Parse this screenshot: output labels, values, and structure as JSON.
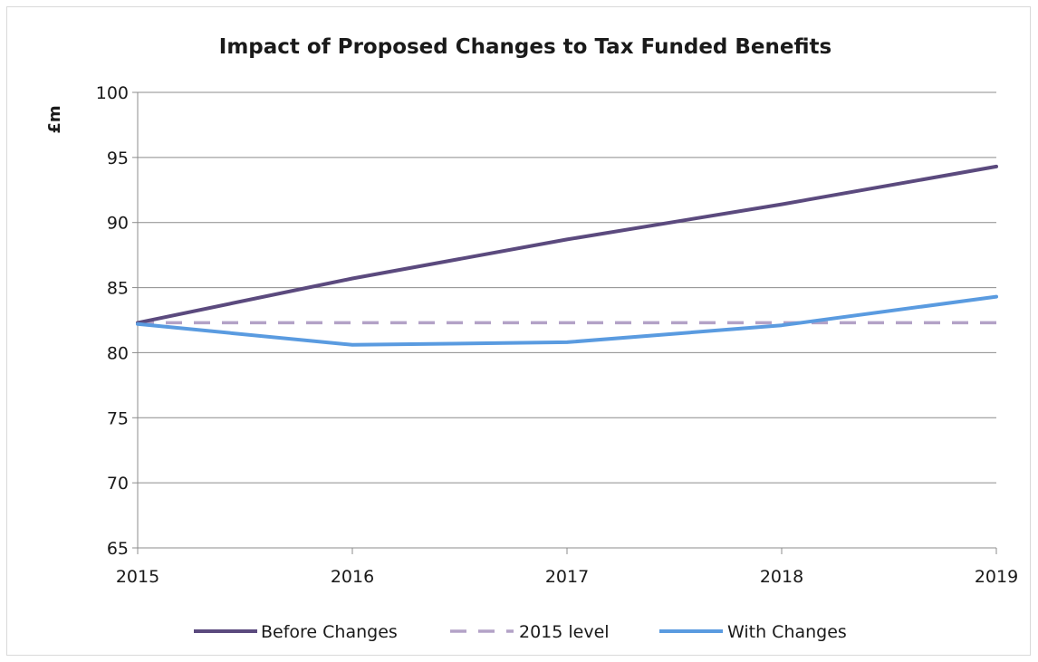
{
  "chart_data": {
    "type": "line",
    "title": "Impact of Proposed Changes to Tax Funded Benefits",
    "xlabel": "",
    "ylabel": "£m",
    "x": [
      "2015",
      "2016",
      "2017",
      "2018",
      "2019"
    ],
    "ylim": [
      65,
      100
    ],
    "yticks": [
      "65",
      "70",
      "75",
      "80",
      "85",
      "90",
      "95",
      "100"
    ],
    "grid": true,
    "legend_position": "bottom",
    "series": [
      {
        "name": "Before Changes",
        "values": [
          82.3,
          85.7,
          88.7,
          91.4,
          94.3
        ],
        "color": "#5b4a7e",
        "dash": false
      },
      {
        "name": "2015 level",
        "values": [
          82.3,
          82.3,
          82.3,
          82.3,
          82.3
        ],
        "color": "#b3a2c7",
        "dash": true
      },
      {
        "name": "With Changes",
        "values": [
          82.2,
          80.6,
          80.8,
          82.1,
          84.3
        ],
        "color": "#5a9be0",
        "dash": false
      }
    ]
  }
}
